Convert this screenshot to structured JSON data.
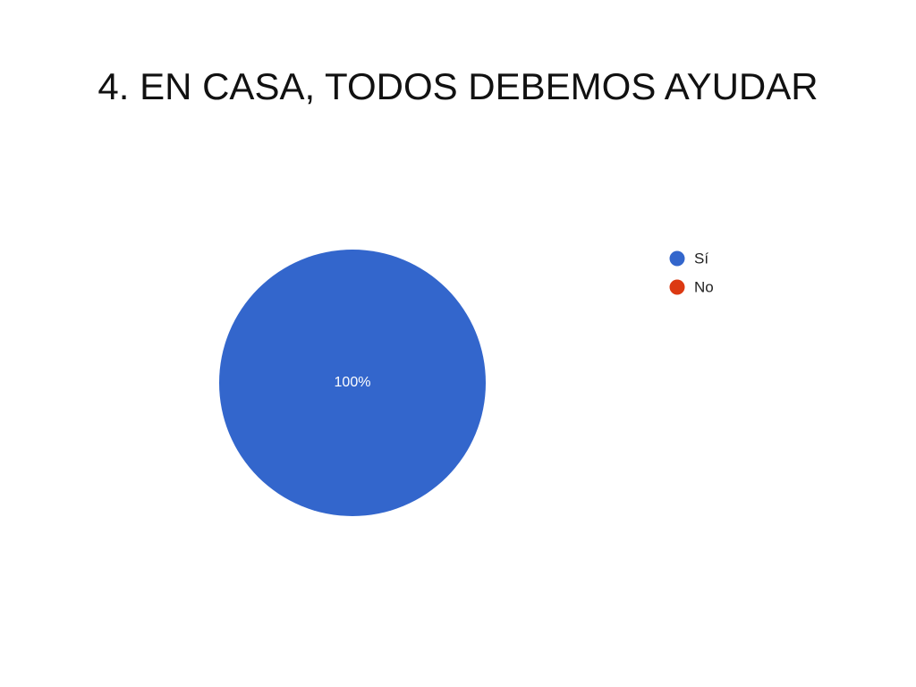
{
  "chart_data": {
    "type": "pie",
    "title": "4. EN CASA, TODOS DEBEMOS AYUDAR",
    "categories": [
      "Sí",
      "No"
    ],
    "values": [
      100,
      0
    ],
    "value_labels": [
      "100%",
      null
    ],
    "colors": [
      "#3366cc",
      "#dc3912"
    ]
  }
}
